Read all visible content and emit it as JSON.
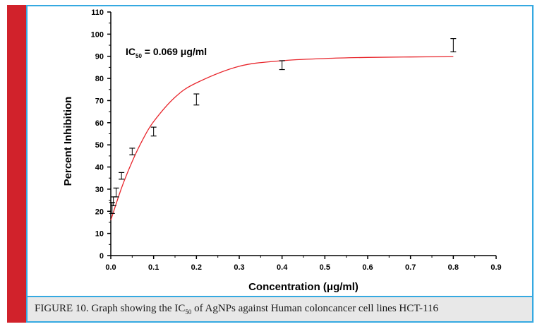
{
  "chart_data": {
    "type": "scatter",
    "xlabel": "Concentration (μg/ml)",
    "ylabel": "Percent Inhibition",
    "xlim": [
      0.0,
      0.9
    ],
    "ylim": [
      0,
      110
    ],
    "x_ticks": [
      "0.0",
      "0.1",
      "0.2",
      "0.3",
      "0.4",
      "0.5",
      "0.6",
      "0.7",
      "0.8",
      "0.9"
    ],
    "y_ticks": [
      "0",
      "10",
      "20",
      "30",
      "40",
      "50",
      "60",
      "70",
      "80",
      "90",
      "100",
      "110"
    ],
    "annotation": {
      "prefix": "IC",
      "subscript": "50",
      "suffix": " = 0.069 μg/ml"
    },
    "points": [
      {
        "x": 0.003,
        "y": 21.5,
        "err": 2.5
      },
      {
        "x": 0.006,
        "y": 24.5,
        "err": 2.0
      },
      {
        "x": 0.0125,
        "y": 28.5,
        "err": 2.0
      },
      {
        "x": 0.025,
        "y": 36.0,
        "err": 1.5
      },
      {
        "x": 0.05,
        "y": 47.0,
        "err": 1.5
      },
      {
        "x": 0.1,
        "y": 56.0,
        "err": 2.0
      },
      {
        "x": 0.2,
        "y": 70.5,
        "err": 2.5
      },
      {
        "x": 0.4,
        "y": 86.0,
        "err": 2.0
      },
      {
        "x": 0.8,
        "y": 95.0,
        "err": 3.0
      }
    ],
    "fit": {
      "x": [
        0.0,
        0.025,
        0.05,
        0.075,
        0.1,
        0.15,
        0.2,
        0.3,
        0.4,
        0.5,
        0.6,
        0.7,
        0.8
      ],
      "y": [
        16.0,
        30.5,
        42.5,
        52.5,
        60.5,
        71.5,
        78.0,
        85.5,
        88.0,
        89.0,
        89.5,
        89.7,
        89.8
      ],
      "color": "#e8262c"
    }
  },
  "caption": {
    "prefix": "FIGURE 10. Graph showing the IC",
    "subscript": "50",
    "suffix": " of AgNPs against Human coloncancer cell lines HCT-116"
  },
  "colors": {
    "frame": "#35a9e1",
    "side_bar": "#d1222b",
    "caption_bg": "#e8e8e8"
  }
}
